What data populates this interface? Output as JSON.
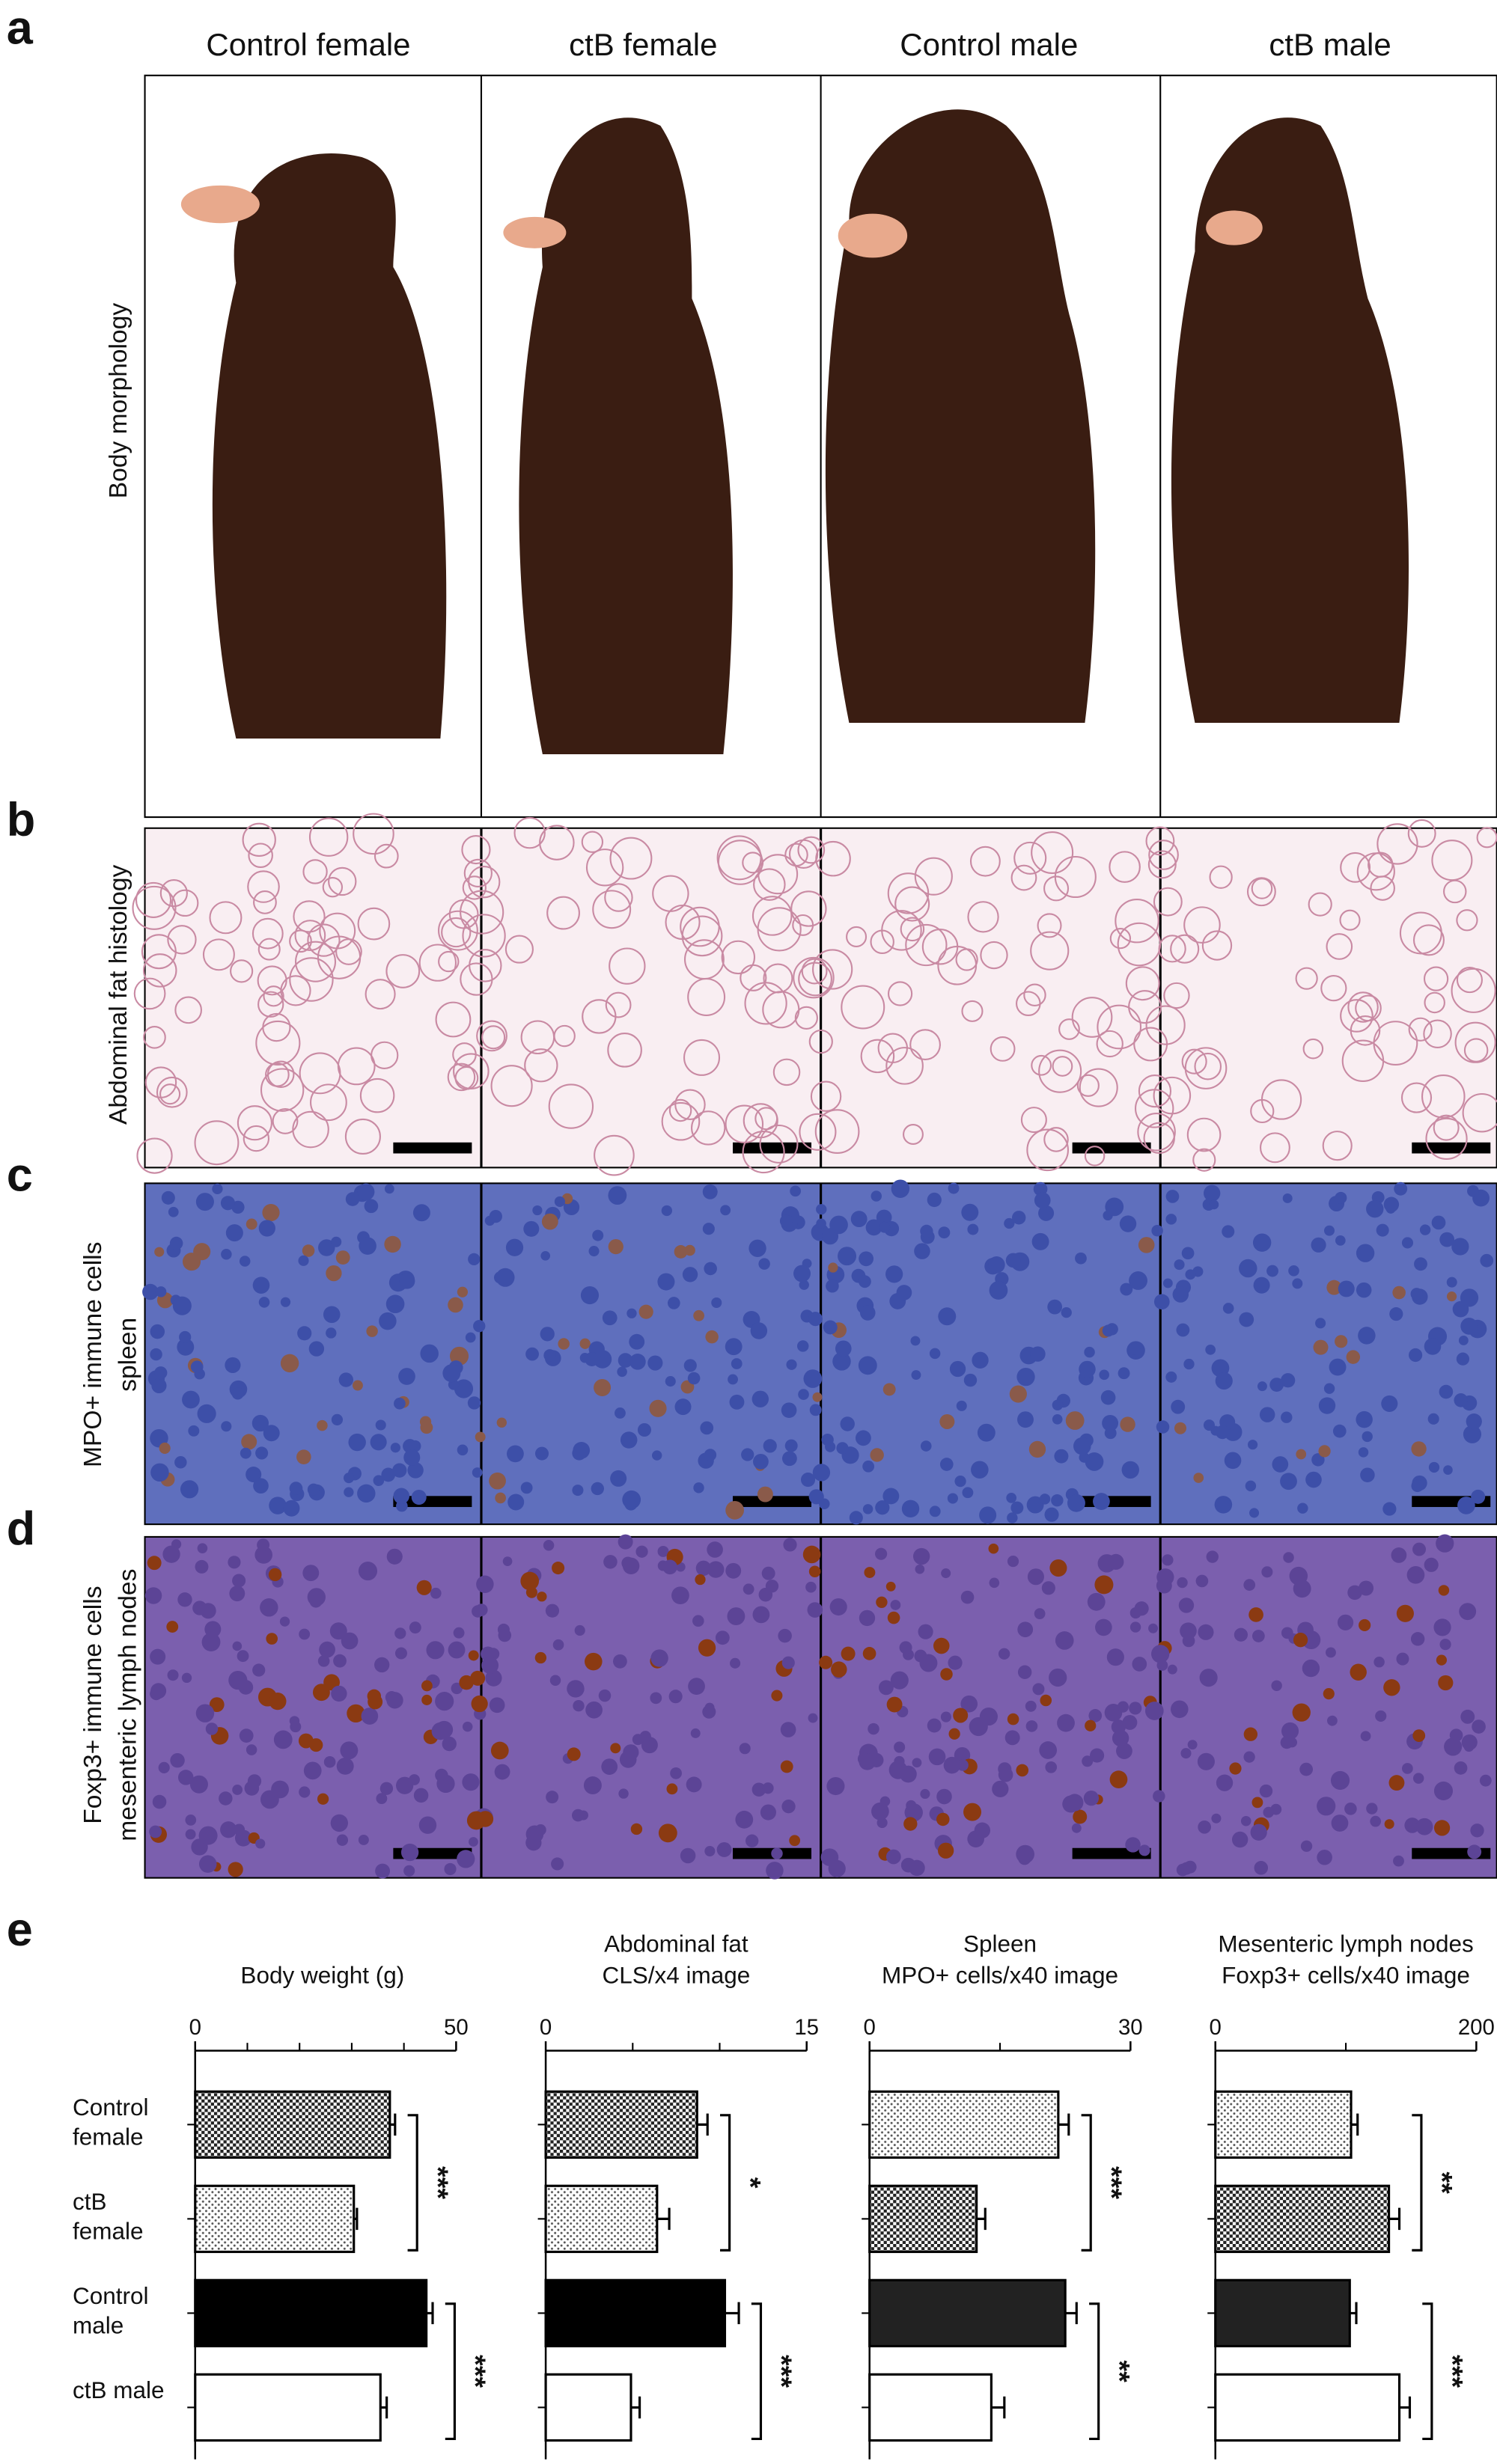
{
  "panel_letters": [
    "a",
    "b",
    "c",
    "d",
    "e"
  ],
  "column_headers": [
    "Control female",
    "ctB female",
    "Control male",
    "ctB male"
  ],
  "row_labels": [
    [
      "Body morphology"
    ],
    [
      "Abdominal fat histology"
    ],
    [
      "MPO+ immune cells",
      "spleen"
    ],
    [
      "Foxp3+ immune cells",
      "mesenteric lymph nodes"
    ]
  ],
  "chart_data": [
    {
      "type": "bar",
      "orientation": "horizontal",
      "title": [
        "Body weight (g)"
      ],
      "categories": [
        "Control female",
        "ctB female",
        "Control male",
        "ctB male"
      ],
      "values": [
        37.3,
        30.4,
        44.3,
        35.5
      ],
      "errors": [
        1,
        0.6,
        1.2,
        1.2
      ],
      "fills": [
        "checker",
        "dots",
        "#000000",
        "#ffffff"
      ],
      "xlim": [
        0,
        50
      ],
      "xticks": [
        0,
        50
      ],
      "minor_ticks": [
        10,
        20,
        30,
        40
      ],
      "annotations": [
        "***",
        "***"
      ]
    },
    {
      "type": "bar",
      "orientation": "horizontal",
      "title": [
        "Abdominal fat",
        "CLS/x4 image"
      ],
      "values": [
        8.7,
        6.4,
        10.3,
        4.9
      ],
      "errors": [
        0.6,
        0.7,
        0.8,
        0.5
      ],
      "fills": [
        "checker",
        "dots",
        "#000000",
        "#ffffff"
      ],
      "xlim": [
        0,
        15
      ],
      "xticks": [
        0,
        15
      ],
      "minor_ticks": [
        5,
        10
      ],
      "annotations": [
        "*",
        "***"
      ]
    },
    {
      "type": "bar",
      "orientation": "horizontal",
      "title": [
        "Spleen",
        "MPO+ cells/x40 image"
      ],
      "values": [
        21.7,
        12.3,
        22.5,
        14
      ],
      "errors": [
        1.2,
        1,
        1.3,
        1.5
      ],
      "fills": [
        "dots",
        "checker",
        "#222222",
        "#ffffff"
      ],
      "xlim": [
        0,
        30
      ],
      "xticks": [
        0,
        30
      ],
      "minor_ticks": [
        15
      ],
      "annotations": [
        "***",
        "**"
      ]
    },
    {
      "type": "bar",
      "orientation": "horizontal",
      "title": [
        "Mesenteric lymph nodes",
        "Foxp3+ cells/x40 image"
      ],
      "values": [
        104,
        133,
        103,
        141
      ],
      "errors": [
        5,
        8,
        5,
        8
      ],
      "fills": [
        "dots",
        "checker",
        "#222222",
        "#ffffff"
      ],
      "xlim": [
        0,
        200
      ],
      "xticks": [
        0,
        200
      ],
      "minor_ticks": [
        100
      ],
      "annotations": [
        "**",
        "***"
      ]
    }
  ]
}
